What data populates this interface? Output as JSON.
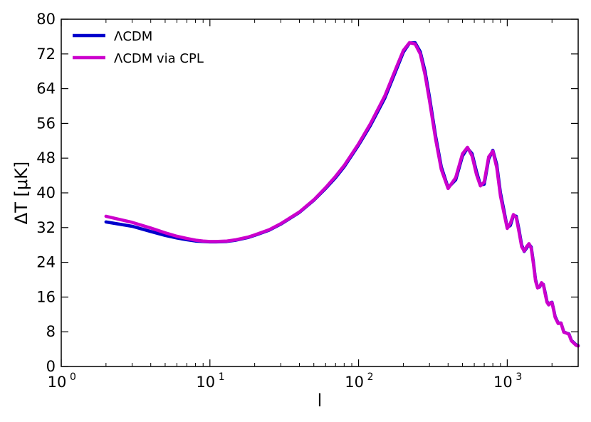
{
  "chart_data": {
    "type": "line",
    "xscale": "log",
    "xlim": [
      1,
      3000
    ],
    "ylim": [
      0,
      80
    ],
    "xlabel": "l",
    "ylabel": "ΔT [μK]",
    "x_ticks": [
      {
        "value": 1,
        "base": "10",
        "exp": "0"
      },
      {
        "value": 10,
        "base": "10",
        "exp": "1"
      },
      {
        "value": 100,
        "base": "10",
        "exp": "2"
      },
      {
        "value": 1000,
        "base": "10",
        "exp": "3"
      }
    ],
    "y_ticks": [
      "0",
      "8",
      "16",
      "24",
      "32",
      "40",
      "48",
      "56",
      "64",
      "72",
      "80"
    ],
    "legend_position": "top-left",
    "series": [
      {
        "name": "ΛCDM",
        "color": "#0000cc",
        "x": [
          2,
          3,
          4,
          5,
          6,
          7,
          8,
          9,
          10,
          11,
          13,
          15,
          18,
          20,
          25,
          30,
          40,
          50,
          60,
          70,
          80,
          100,
          120,
          150,
          180,
          200,
          220,
          240,
          260,
          280,
          300,
          330,
          360,
          400,
          450,
          500,
          540,
          580,
          620,
          660,
          700,
          750,
          800,
          850,
          900,
          950,
          1000,
          1050,
          1100,
          1150,
          1200,
          1250,
          1300,
          1350,
          1400,
          1450,
          1500,
          1550,
          1600,
          1650,
          1700,
          1750,
          1800,
          1850,
          1900,
          1950,
          2000,
          2050,
          2100,
          2200,
          2300,
          2400,
          2500,
          2600,
          2700,
          2800,
          2900,
          3000
        ],
        "y": [
          33.3,
          32.3,
          31.1,
          30.2,
          29.6,
          29.2,
          28.9,
          28.8,
          28.7,
          28.7,
          28.8,
          29.1,
          29.7,
          30.2,
          31.4,
          32.8,
          35.5,
          38.3,
          41.0,
          43.5,
          46.0,
          51.0,
          55.5,
          61.8,
          68.5,
          72.4,
          74.5,
          74.6,
          72.5,
          68.0,
          62.0,
          53.0,
          46.0,
          41.2,
          43.0,
          48.5,
          50.3,
          49.0,
          45.0,
          41.8,
          42.0,
          47.8,
          49.8,
          46.5,
          40.0,
          36.0,
          32.0,
          32.5,
          34.8,
          34.6,
          31.5,
          28.0,
          26.5,
          27.3,
          28.2,
          27.5,
          24.0,
          20.0,
          18.2,
          18.3,
          19.2,
          18.9,
          17.0,
          15.0,
          14.2,
          14.6,
          14.8,
          13.2,
          11.5,
          10.0,
          10.0,
          8.0,
          7.7,
          7.5,
          6.0,
          5.5,
          5.0,
          4.8
        ]
      },
      {
        "name": "ΛCDM via CPL",
        "color": "#cc00cc",
        "x": [
          2,
          3,
          4,
          5,
          6,
          7,
          8,
          9,
          10,
          11,
          13,
          15,
          18,
          20,
          25,
          30,
          40,
          50,
          60,
          70,
          80,
          100,
          120,
          150,
          180,
          200,
          220,
          240,
          260,
          280,
          300,
          330,
          360,
          400,
          450,
          500,
          540,
          580,
          620,
          660,
          700,
          750,
          800,
          850,
          900,
          950,
          1000,
          1050,
          1100,
          1150,
          1200,
          1250,
          1300,
          1350,
          1400,
          1450,
          1500,
          1550,
          1600,
          1650,
          1700,
          1750,
          1800,
          1850,
          1900,
          1950,
          2000,
          2050,
          2100,
          2200,
          2300,
          2400,
          2500,
          2600,
          2700,
          2800,
          2900,
          3000
        ],
        "y": [
          34.6,
          33.2,
          31.9,
          30.8,
          30.0,
          29.5,
          29.1,
          28.9,
          28.8,
          28.8,
          28.9,
          29.2,
          29.8,
          30.3,
          31.5,
          32.9,
          35.6,
          38.4,
          41.2,
          43.8,
          46.3,
          51.3,
          55.9,
          62.3,
          69.0,
          72.8,
          74.6,
          74.3,
          72.0,
          67.2,
          61.2,
          52.3,
          45.4,
          41.0,
          43.5,
          49.0,
          50.5,
          48.5,
          44.3,
          41.6,
          42.5,
          48.3,
          49.6,
          45.8,
          39.3,
          35.4,
          31.8,
          33.0,
          35.0,
          34.3,
          31.0,
          27.6,
          26.6,
          27.6,
          28.3,
          27.2,
          23.6,
          19.7,
          18.1,
          18.4,
          19.3,
          18.8,
          16.7,
          14.8,
          14.2,
          14.7,
          14.7,
          13.0,
          11.3,
          9.9,
          10.0,
          7.9,
          7.7,
          7.4,
          5.9,
          5.4,
          4.9,
          4.7
        ]
      }
    ]
  }
}
